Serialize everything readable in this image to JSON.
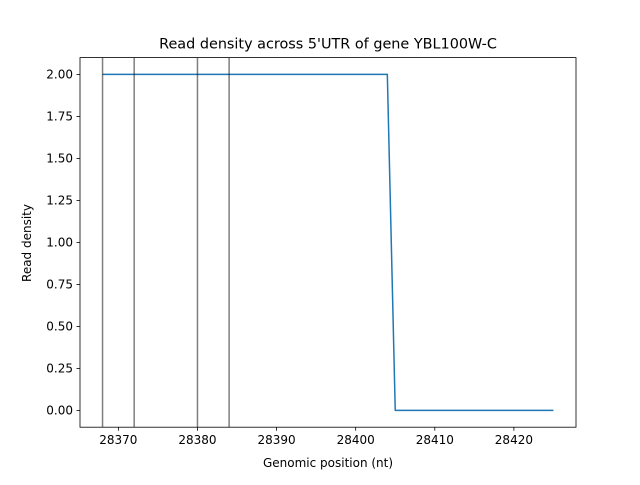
{
  "chart_data": {
    "type": "line",
    "title": "Read density across 5'UTR of gene YBL100W-C",
    "xlabel": "Genomic position (nt)",
    "ylabel": "Read density",
    "xlim": [
      28365.15,
      28427.85
    ],
    "ylim": [
      -0.1,
      2.1
    ],
    "x_ticks": [
      28370,
      28380,
      28390,
      28400,
      28410,
      28420
    ],
    "x_tick_labels": [
      "28370",
      "28380",
      "28390",
      "28400",
      "28410",
      "28420"
    ],
    "y_ticks": [
      0.0,
      0.25,
      0.5,
      0.75,
      1.0,
      1.25,
      1.5,
      1.75,
      2.0
    ],
    "y_tick_labels": [
      "0.00",
      "0.25",
      "0.50",
      "0.75",
      "1.00",
      "1.25",
      "1.50",
      "1.75",
      "2.00"
    ],
    "grid": false,
    "series": [
      {
        "color": "#1f77b4",
        "x": [
          28368,
          28404,
          28405,
          28425
        ],
        "y": [
          2.0,
          2.0,
          0.0,
          0.0
        ]
      }
    ],
    "vertical_lines": {
      "color": "#000000",
      "x": [
        28368,
        28372,
        28380,
        28384
      ]
    }
  }
}
